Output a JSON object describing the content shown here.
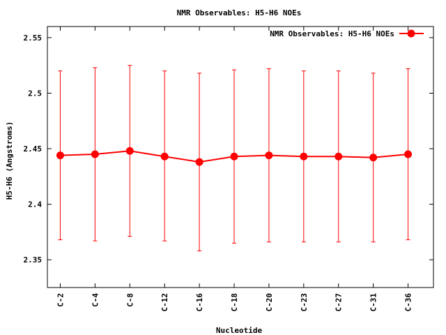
{
  "chart_data": {
    "type": "line",
    "title": "NMR Observables: H5-H6 NOEs",
    "xlabel": "Nucleotide",
    "ylabel": "H5-H6 (Angstroms)",
    "categories": [
      "C-2",
      "C-4",
      "C-8",
      "C-12",
      "C-16",
      "C-18",
      "C-20",
      "C-23",
      "C-27",
      "C-31",
      "C-36"
    ],
    "ylim": [
      2.325,
      2.56
    ],
    "yticks": [
      "2.35",
      "2.4",
      "2.45",
      "2.5",
      "2.55"
    ],
    "legend": "top-right",
    "grid": false,
    "series": [
      {
        "name": "NMR Observables: H5-H6 NOEs",
        "color": "#ff0000",
        "values": [
          2.444,
          2.445,
          2.448,
          2.443,
          2.438,
          2.443,
          2.444,
          2.443,
          2.443,
          2.442,
          2.445
        ],
        "error_low": [
          2.368,
          2.367,
          2.371,
          2.367,
          2.358,
          2.365,
          2.366,
          2.366,
          2.366,
          2.366,
          2.368
        ],
        "error_high": [
          2.52,
          2.523,
          2.525,
          2.52,
          2.518,
          2.521,
          2.522,
          2.52,
          2.52,
          2.518,
          2.522
        ]
      }
    ]
  }
}
